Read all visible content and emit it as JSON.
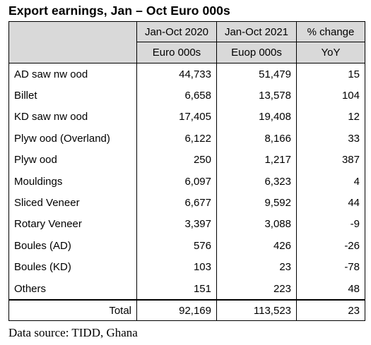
{
  "title": "Export earnings, Jan – Oct Euro 000s",
  "header": {
    "col1_line1": "Jan-Oct 2020",
    "col1_line2": "Euro 000s",
    "col2_line1": "Jan-Oct 2021",
    "col2_line2": "Euop 000s",
    "col3_line1": "% change",
    "col3_line2": "YoY"
  },
  "rows": [
    {
      "label": "AD saw nw ood",
      "y2020": "44,733",
      "y2021": "51,479",
      "change": "15"
    },
    {
      "label": "Billet",
      "y2020": "6,658",
      "y2021": "13,578",
      "change": "104"
    },
    {
      "label": "KD saw nw ood",
      "y2020": "17,405",
      "y2021": "19,408",
      "change": "12"
    },
    {
      "label": "Plyw ood (Overland)",
      "y2020": "6,122",
      "y2021": "8,166",
      "change": "33"
    },
    {
      "label": "Plyw ood",
      "y2020": "250",
      "y2021": "1,217",
      "change": "387"
    },
    {
      "label": "Mouldings",
      "y2020": "6,097",
      "y2021": "6,323",
      "change": "4"
    },
    {
      "label": "Sliced Veneer",
      "y2020": "6,677",
      "y2021": "9,592",
      "change": "44"
    },
    {
      "label": "Rotary Veneer",
      "y2020": "3,397",
      "y2021": "3,088",
      "change": "-9"
    },
    {
      "label": "Boules (AD)",
      "y2020": "576",
      "y2021": "426",
      "change": "-26"
    },
    {
      "label": "Boules (KD)",
      "y2020": "103",
      "y2021": "23",
      "change": "-78"
    },
    {
      "label": "Others",
      "y2020": "151",
      "y2021": "223",
      "change": "48"
    }
  ],
  "total": {
    "label": "Total",
    "y2020": "92,169",
    "y2021": "113,523",
    "change": "23"
  },
  "source": "Data source: TIDD, Ghana"
}
